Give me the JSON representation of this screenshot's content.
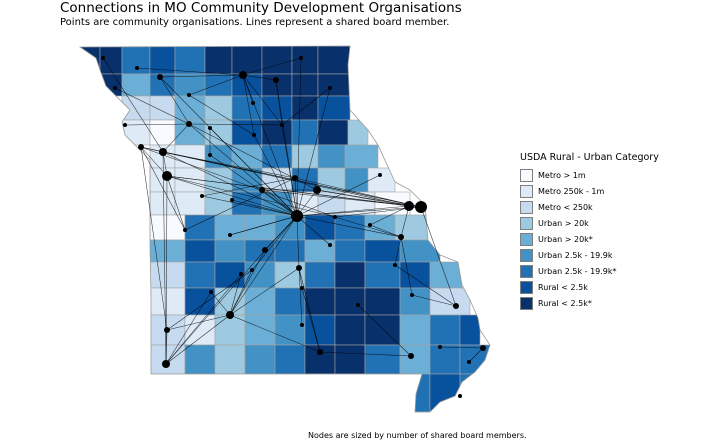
{
  "title": "Connections in MO Community Development Organisations",
  "subtitle": "Points are community organisations. Lines represent a shared board member.",
  "caption": "Nodes are sized by number of shared board members.",
  "legend": {
    "title": "USDA Rural - Urban Category",
    "items": [
      {
        "label": "Metro > 1m",
        "color": "#f7fbff"
      },
      {
        "label": "Metro 250k - 1m",
        "color": "#deebf7"
      },
      {
        "label": "Metro < 250k",
        "color": "#c6dbef"
      },
      {
        "label": "Urban > 20k",
        "color": "#9ecae1"
      },
      {
        "label": "Urban > 20k*",
        "color": "#6baed6"
      },
      {
        "label": "Urban 2.5k - 19.9k",
        "color": "#4292c6"
      },
      {
        "label": "Urban 2.5k - 19.9k*",
        "color": "#2171b5"
      },
      {
        "label": "Rural < 2.5k",
        "color": "#08519c"
      },
      {
        "label": "Rural < 2.5k*",
        "color": "#08306b"
      }
    ]
  }
}
